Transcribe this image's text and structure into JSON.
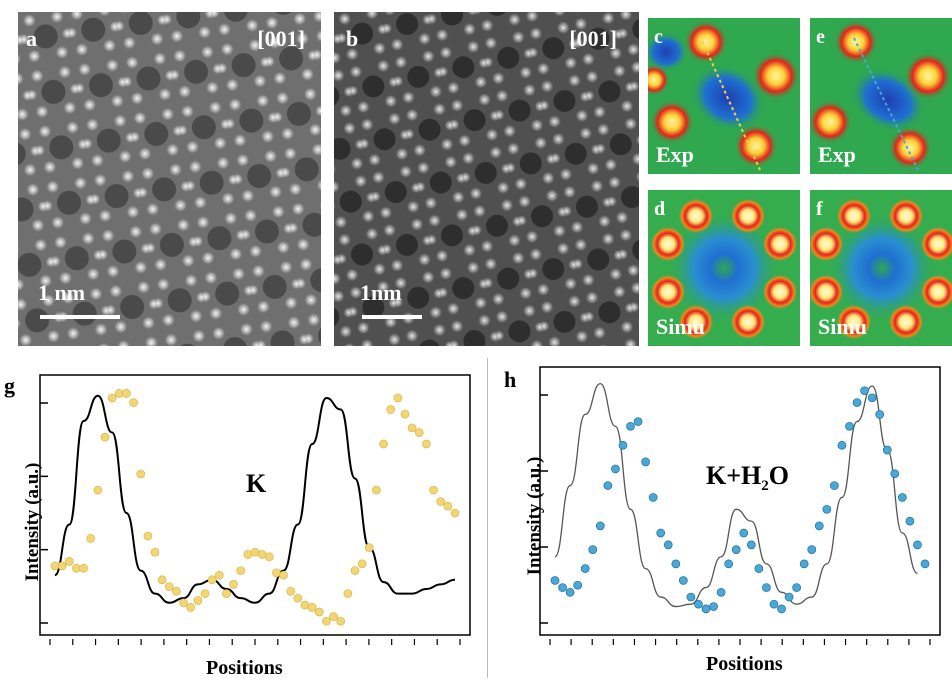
{
  "panels": {
    "a": {
      "label": "a",
      "zone": "[001]",
      "scale": "1 nm"
    },
    "b": {
      "label": "b",
      "zone": "[001]",
      "scale": "1nm"
    },
    "c": {
      "label": "c",
      "caption": "Exp"
    },
    "d": {
      "label": "d",
      "caption": "Simu"
    },
    "e": {
      "label": "e",
      "caption": "Exp"
    },
    "f": {
      "label": "f",
      "caption": "Simu"
    }
  },
  "colors": {
    "dot_g": "#f2d675",
    "dot_h": "#4aa8d8",
    "line_g": "#000000",
    "line_h": "#555555",
    "map_green": "#2fa84f",
    "map_red": "#e4241b",
    "map_yellow": "#ffe97a",
    "map_blue": "#1f6fd1"
  },
  "chart_data": [
    {
      "type": "scatter",
      "panel": "g",
      "label": "g",
      "annotation": "K",
      "xlabel": "Positions",
      "ylabel": "Intensity (a.u.)",
      "series": [
        {
          "kind": "points",
          "x": [
            1,
            2,
            3,
            4,
            5,
            6,
            7,
            8,
            9,
            10,
            11,
            12,
            13,
            14,
            15,
            16,
            17,
            18,
            19,
            20,
            21,
            22,
            23,
            24,
            25,
            26,
            27,
            28,
            29,
            30,
            31,
            32,
            33,
            34,
            35,
            36,
            37,
            38,
            39,
            40,
            41,
            42,
            43,
            44,
            45,
            46,
            47,
            48,
            49,
            50,
            51,
            52,
            53,
            54,
            55,
            56,
            57
          ],
          "y": [
            0.22,
            0.22,
            0.24,
            0.21,
            0.21,
            0.34,
            0.55,
            0.78,
            0.95,
            0.97,
            0.97,
            0.93,
            0.62,
            0.35,
            0.28,
            0.16,
            0.13,
            0.11,
            0.06,
            0.04,
            0.07,
            0.1,
            0.16,
            0.18,
            0.1,
            0.14,
            0.2,
            0.27,
            0.28,
            0.27,
            0.26,
            0.19,
            0.18,
            0.11,
            0.08,
            0.05,
            0.04,
            0.02,
            -0.02,
            0.0,
            -0.02,
            0.1,
            0.2,
            0.23,
            0.3,
            0.55,
            0.75,
            0.9,
            0.95,
            0.88,
            0.82,
            0.8,
            0.75,
            0.55,
            0.5,
            0.48,
            0.45
          ]
        },
        {
          "kind": "line",
          "x": [
            1,
            3,
            5,
            7,
            9,
            11,
            13,
            15,
            17,
            19,
            21,
            23,
            25,
            27,
            29,
            31,
            33,
            35,
            37,
            39,
            41,
            43,
            45,
            47,
            49,
            51,
            53,
            55,
            57
          ],
          "y": [
            0.18,
            0.4,
            0.85,
            0.96,
            0.8,
            0.45,
            0.2,
            0.1,
            0.06,
            0.08,
            0.14,
            0.16,
            0.12,
            0.08,
            0.06,
            0.1,
            0.2,
            0.4,
            0.75,
            0.95,
            0.9,
            0.6,
            0.3,
            0.15,
            0.1,
            0.1,
            0.12,
            0.14,
            0.16
          ]
        }
      ]
    },
    {
      "type": "scatter",
      "panel": "h",
      "label": "h",
      "annotation": "K+H",
      "annotation_sub": "2",
      "annotation_tail": "O",
      "xlabel": "Positions",
      "ylabel": "Intensity (a.u.)",
      "series": [
        {
          "kind": "points",
          "x": [
            1,
            2,
            3,
            4,
            5,
            6,
            7,
            8,
            9,
            10,
            11,
            12,
            13,
            14,
            15,
            16,
            17,
            18,
            19,
            20,
            21,
            22,
            23,
            24,
            25,
            26,
            27,
            28,
            29,
            30,
            31,
            32,
            33,
            34,
            35,
            36,
            37,
            38,
            39,
            40,
            41,
            42,
            43,
            44,
            45,
            46,
            47,
            48,
            49,
            50
          ],
          "y": [
            0.15,
            0.12,
            0.1,
            0.13,
            0.2,
            0.28,
            0.38,
            0.55,
            0.62,
            0.72,
            0.8,
            0.82,
            0.65,
            0.5,
            0.35,
            0.3,
            0.22,
            0.15,
            0.08,
            0.05,
            0.03,
            0.04,
            0.1,
            0.22,
            0.28,
            0.35,
            0.3,
            0.2,
            0.12,
            0.05,
            0.03,
            0.08,
            0.12,
            0.22,
            0.28,
            0.38,
            0.45,
            0.55,
            0.72,
            0.8,
            0.9,
            0.95,
            0.92,
            0.85,
            0.7,
            0.6,
            0.5,
            0.4,
            0.3,
            0.22
          ]
        },
        {
          "kind": "line",
          "x": [
            1,
            3,
            5,
            7,
            9,
            11,
            13,
            15,
            17,
            19,
            21,
            23,
            25,
            27,
            29,
            31,
            33,
            35,
            37,
            39,
            41,
            43,
            45,
            47,
            49
          ],
          "y": [
            0.25,
            0.55,
            0.85,
            0.98,
            0.8,
            0.45,
            0.2,
            0.08,
            0.04,
            0.05,
            0.12,
            0.25,
            0.45,
            0.4,
            0.22,
            0.1,
            0.05,
            0.08,
            0.22,
            0.5,
            0.82,
            0.97,
            0.7,
            0.35,
            0.18
          ]
        }
      ]
    }
  ]
}
